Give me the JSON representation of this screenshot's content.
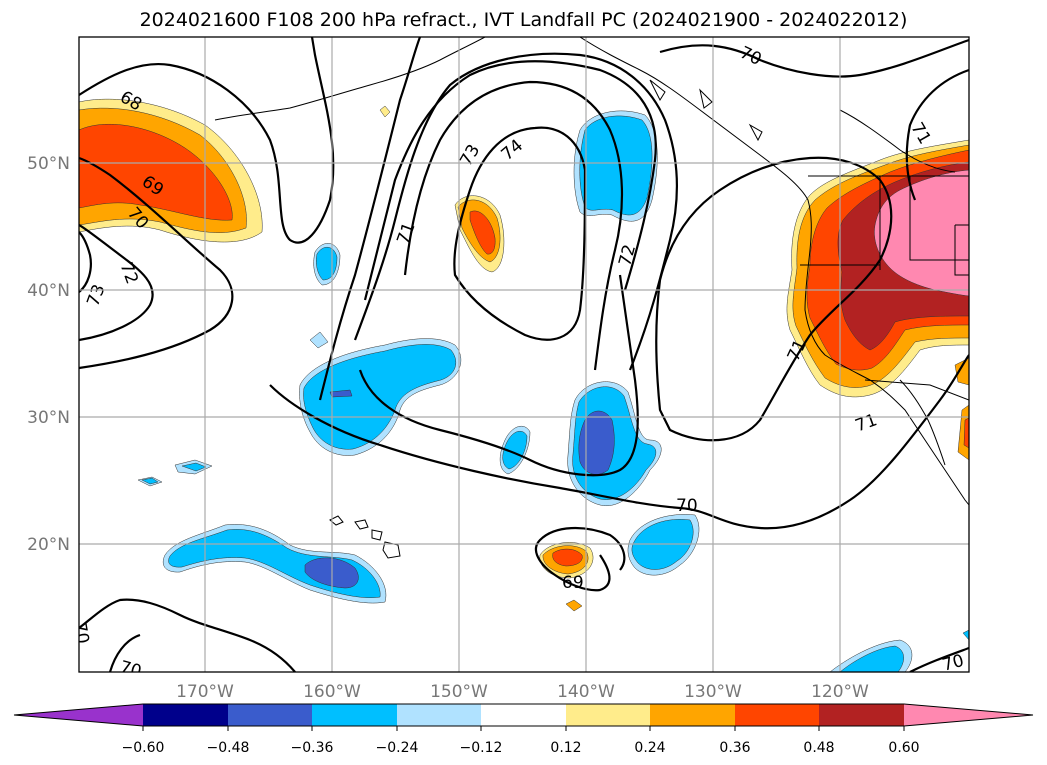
{
  "title": "2024021600 F108 200 hPa refract., IVT Landfall PC (2024021900 - 2024022012)",
  "lon_ticks": [
    "170°W",
    "160°W",
    "150°W",
    "140°W",
    "130°W",
    "120°W"
  ],
  "lat_ticks": [
    "50°N",
    "40°N",
    "30°N",
    "20°N"
  ],
  "colorbar": {
    "ticks": [
      "−0.60",
      "−0.48",
      "−0.36",
      "−0.24",
      "−0.12",
      "0.12",
      "0.24",
      "0.36",
      "0.48",
      "0.60"
    ],
    "colors": [
      "#9932cc",
      "#00008b",
      "#3a5ccc",
      "#00bfff",
      "#b0e2ff",
      "#ffffff",
      "#ffec8b",
      "#ffa500",
      "#ff4500",
      "#b22222",
      "#ff88b0"
    ]
  },
  "contour_labels": [
    "68",
    "69",
    "70",
    "71",
    "72",
    "73",
    "73",
    "74",
    "71",
    "72",
    "70",
    "71",
    "70",
    "71",
    "70",
    "69",
    "70",
    "70"
  ],
  "shading_colors": {
    "pos1": "#ffec8b",
    "pos2": "#ffa500",
    "pos3": "#ff4500",
    "pos4": "#b22222",
    "pos5": "#ff88b0",
    "neg1": "#b0e2ff",
    "neg2": "#00bfff",
    "neg3": "#3a5ccc"
  }
}
